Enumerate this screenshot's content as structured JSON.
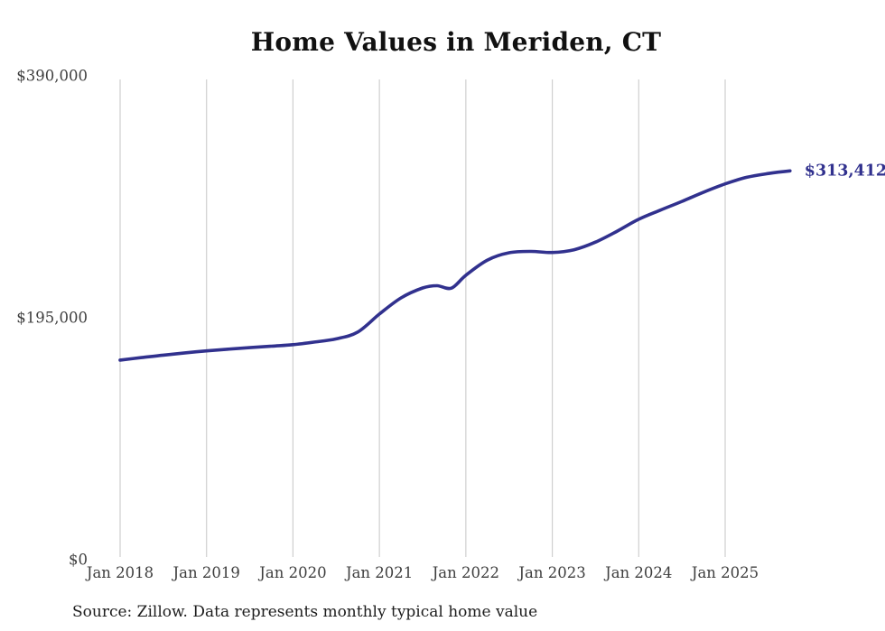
{
  "page": {
    "background": "#ffffff"
  },
  "header": {
    "title": "Home Values in Meriden, CT"
  },
  "footer": {
    "source_note": "Source: Zillow. Data represents monthly typical home value"
  },
  "chart_data": {
    "type": "line",
    "title": "Home Values in Meriden, CT",
    "xlabel": "",
    "ylabel": "",
    "y_range": [
      0,
      390000
    ],
    "x_range_months": [
      "2018-01",
      "2025-10"
    ],
    "grid": "vertical-only",
    "legend": "none",
    "line_color": "#31318e",
    "grid_color": "#cfcfcf",
    "tick_color": "#3e3e3e",
    "y_ticks": [
      {
        "value": 0,
        "label": "$0"
      },
      {
        "value": 195000,
        "label": "$195,000"
      },
      {
        "value": 390000,
        "label": "$390,000"
      }
    ],
    "x_ticks": [
      {
        "date": "2018-01",
        "label": "Jan 2018"
      },
      {
        "date": "2019-01",
        "label": "Jan 2019"
      },
      {
        "date": "2020-01",
        "label": "Jan 2020"
      },
      {
        "date": "2021-01",
        "label": "Jan 2021"
      },
      {
        "date": "2022-01",
        "label": "Jan 2022"
      },
      {
        "date": "2023-01",
        "label": "Jan 2023"
      },
      {
        "date": "2024-01",
        "label": "Jan 2024"
      },
      {
        "date": "2025-01",
        "label": "Jan 2025"
      }
    ],
    "series": [
      {
        "name": "Typical home value",
        "points": [
          {
            "date": "2018-01",
            "value": 160900
          },
          {
            "date": "2018-04",
            "value": 162900
          },
          {
            "date": "2018-07",
            "value": 164900
          },
          {
            "date": "2018-10",
            "value": 166700
          },
          {
            "date": "2019-01",
            "value": 168300
          },
          {
            "date": "2019-04",
            "value": 169700
          },
          {
            "date": "2019-07",
            "value": 170900
          },
          {
            "date": "2019-10",
            "value": 172100
          },
          {
            "date": "2020-01",
            "value": 173300
          },
          {
            "date": "2020-04",
            "value": 175400
          },
          {
            "date": "2020-07",
            "value": 178000
          },
          {
            "date": "2020-10",
            "value": 183500
          },
          {
            "date": "2021-01",
            "value": 198000
          },
          {
            "date": "2021-04",
            "value": 211000
          },
          {
            "date": "2021-07",
            "value": 219000
          },
          {
            "date": "2021-09",
            "value": 220800
          },
          {
            "date": "2021-11",
            "value": 218900
          },
          {
            "date": "2022-01",
            "value": 229300
          },
          {
            "date": "2022-04",
            "value": 241500
          },
          {
            "date": "2022-07",
            "value": 247400
          },
          {
            "date": "2022-10",
            "value": 248500
          },
          {
            "date": "2023-01",
            "value": 247600
          },
          {
            "date": "2023-04",
            "value": 249800
          },
          {
            "date": "2023-07",
            "value": 256000
          },
          {
            "date": "2023-10",
            "value": 264800
          },
          {
            "date": "2024-01",
            "value": 274400
          },
          {
            "date": "2024-04",
            "value": 281700
          },
          {
            "date": "2024-07",
            "value": 288800
          },
          {
            "date": "2024-10",
            "value": 296200
          },
          {
            "date": "2025-01",
            "value": 302900
          },
          {
            "date": "2025-04",
            "value": 308200
          },
          {
            "date": "2025-07",
            "value": 311300
          },
          {
            "date": "2025-10",
            "value": 313412
          }
        ]
      }
    ],
    "end_label": {
      "text": "$313,412",
      "value": 313412,
      "color": "#31318e"
    },
    "source": "Source: Zillow. Data represents monthly typical home value"
  }
}
